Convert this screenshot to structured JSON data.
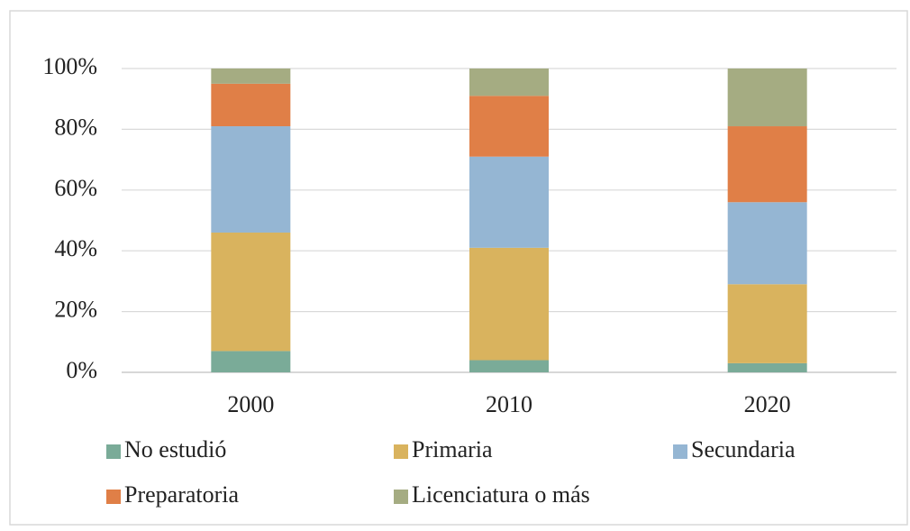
{
  "chart_data": {
    "type": "stacked_bar",
    "categories": [
      "2000",
      "2010",
      "2020"
    ],
    "series": [
      {
        "name": "No estudió",
        "color": "#7aab98",
        "values": [
          7,
          4,
          3
        ]
      },
      {
        "name": "Primaria",
        "color": "#d9b35e",
        "values": [
          39,
          37,
          26
        ]
      },
      {
        "name": "Secundaria",
        "color": "#95b6d3",
        "values": [
          35,
          30,
          27
        ]
      },
      {
        "name": "Preparatoria",
        "color": "#e07f47",
        "values": [
          14,
          20,
          25
        ]
      },
      {
        "name": "Licenciatura o más",
        "color": "#a5ac82",
        "values": [
          5,
          9,
          19
        ]
      }
    ],
    "ylim": [
      0,
      100
    ],
    "yticks": [
      {
        "value": 0,
        "label": "0%"
      },
      {
        "value": 20,
        "label": "20%"
      },
      {
        "value": 40,
        "label": "40%"
      },
      {
        "value": 60,
        "label": "60%"
      },
      {
        "value": 80,
        "label": "80%"
      },
      {
        "value": 100,
        "label": "100%"
      }
    ],
    "grid": true,
    "legend": "bottom"
  }
}
